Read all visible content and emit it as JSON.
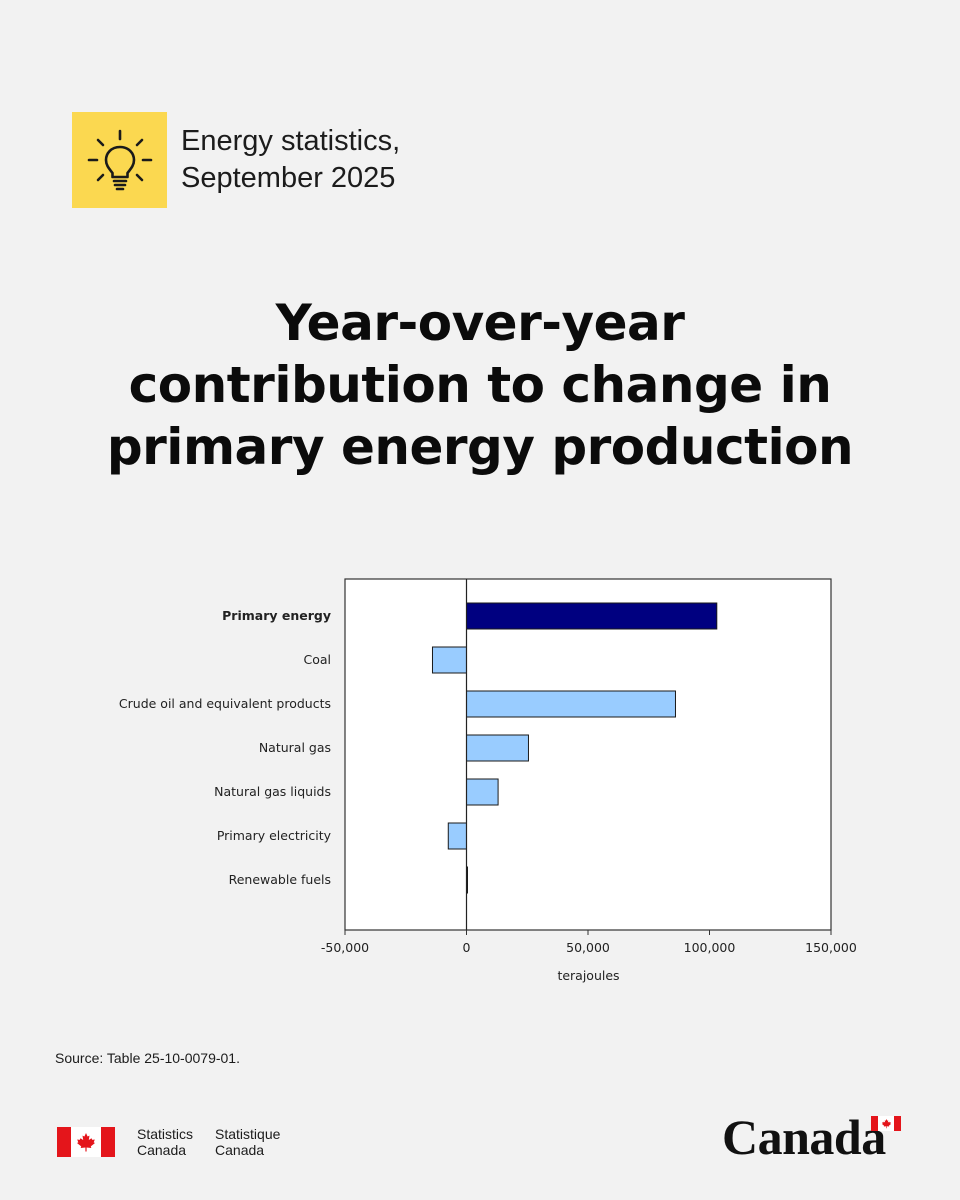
{
  "topic": {
    "icon": "lightbulb-icon",
    "line1": "Energy statistics,",
    "line2": "September 2025"
  },
  "headline": {
    "line1": "Year-over-year",
    "line2": "contribution to change in",
    "line3": "primary energy production"
  },
  "chart_data": {
    "type": "bar",
    "orientation": "horizontal",
    "categories": [
      "Primary energy",
      "Coal",
      "Crude oil and equivalent products",
      "Natural gas",
      "Natural gas liquids",
      "Primary electricity",
      "Renewable fuels"
    ],
    "values": [
      103000,
      -14000,
      86000,
      25500,
      13000,
      -7500,
      300
    ],
    "highlight_category": "Primary energy",
    "xlabel": "terajoules",
    "xlim": [
      -50000,
      150000
    ],
    "xticks": [
      -50000,
      0,
      50000,
      100000,
      150000
    ],
    "xtick_labels": [
      "-50,000",
      "0",
      "50,000",
      "100,000",
      "150,000"
    ],
    "colors": {
      "highlight": "#000080",
      "default": "#99ccff",
      "outline": "#1a1a1a"
    },
    "grid": false,
    "legend": "none"
  },
  "source": "Source: Table 25-10-0079-01.",
  "footer": {
    "agency_en_1": "Statistics",
    "agency_en_2": "Canada",
    "agency_fr_1": "Statistique",
    "agency_fr_2": "Canada",
    "wordmark": "Canada"
  }
}
